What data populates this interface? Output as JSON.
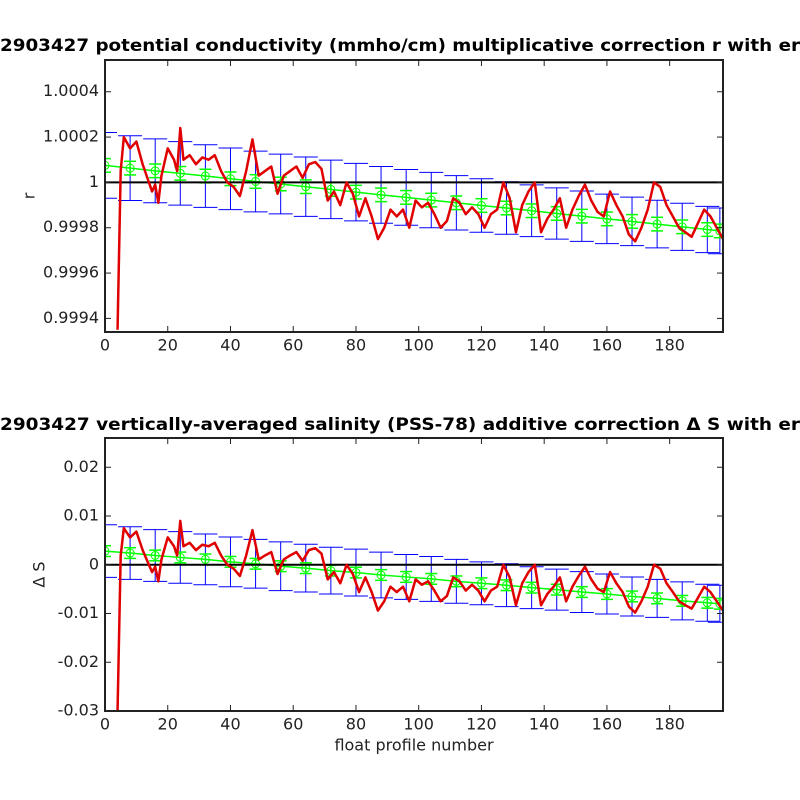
{
  "chart_data": [
    {
      "type": "errorbar_line",
      "title": "2903427 potential conductivity (mmho/cm) multiplicative correction r with er",
      "ylabel": "r",
      "xlim": [
        0,
        197
      ],
      "xticks": [
        0,
        20,
        40,
        60,
        80,
        100,
        120,
        140,
        160,
        180
      ],
      "ylim": [
        0.99934,
        1.00054
      ],
      "yticks": [
        0.9994,
        0.9996,
        0.9998,
        1,
        1.0002,
        1.0004
      ],
      "reference_y": 1,
      "reference_color": "#000000",
      "fit": {
        "x": [
          0,
          8,
          16,
          24,
          32,
          40,
          48,
          56,
          64,
          72,
          80,
          88,
          96,
          104,
          112,
          120,
          128,
          136,
          144,
          152,
          160,
          168,
          176,
          184,
          192,
          196
        ],
        "values": [
          1.000075,
          1.000063,
          1.000051,
          1.00004,
          1.000028,
          1.000016,
          1.000004,
          0.999993,
          0.999981,
          0.999969,
          0.999957,
          0.999945,
          0.999934,
          0.999922,
          0.99991,
          0.999898,
          0.999887,
          0.999875,
          0.999863,
          0.999851,
          0.999839,
          0.999828,
          0.999816,
          0.999804,
          0.999792,
          0.999786
        ],
        "error": [
          0.000145,
          0.000143,
          0.000141,
          0.00014,
          0.000138,
          0.000136,
          0.000134,
          0.000132,
          0.000131,
          0.000129,
          0.000127,
          0.000125,
          0.000123,
          0.000122,
          0.00012,
          0.000118,
          0.000116,
          0.000114,
          0.000113,
          0.000111,
          0.000109,
          0.000107,
          0.000105,
          0.000104,
          0.000102,
          0.000101
        ],
        "inner_error": [
          3e-05,
          3e-05,
          3e-05,
          3e-05,
          3e-05,
          3e-05,
          3e-05,
          3e-05,
          3e-05,
          3e-05,
          3e-05,
          3e-05,
          3e-05,
          3e-05,
          3e-05,
          3e-05,
          3e-05,
          3e-05,
          3e-05,
          3e-05,
          3e-05,
          3e-05,
          3e-05,
          3e-05,
          3e-05,
          3e-05
        ],
        "error_color": "#0000ff",
        "inner_color": "#00ff00"
      },
      "line": {
        "color": "#e00000",
        "x": [
          4,
          5,
          6,
          8,
          10,
          12,
          14,
          15,
          16,
          17,
          18,
          20,
          22,
          23,
          24,
          25,
          27,
          29,
          31,
          33,
          35,
          37,
          39,
          41,
          43,
          45,
          47,
          49,
          51,
          53,
          55,
          57,
          59,
          61,
          63,
          65,
          67,
          69,
          71,
          73,
          75,
          77,
          79,
          81,
          83,
          85,
          87,
          89,
          91,
          93,
          95,
          97,
          99,
          101,
          103,
          105,
          107,
          109,
          111,
          113,
          115,
          117,
          119,
          121,
          123,
          125,
          127,
          129,
          131,
          133,
          135,
          137,
          139,
          141,
          143,
          145,
          147,
          149,
          151,
          153,
          155,
          157,
          159,
          161,
          163,
          165,
          167,
          169,
          171,
          173,
          175,
          177,
          179,
          181,
          183,
          185,
          187,
          189,
          191,
          193,
          195,
          197
        ],
        "values": [
          0.99935,
          1.00005,
          1.0002,
          1.00015,
          1.00018,
          1.00008,
          1.0,
          0.99996,
          0.99999,
          0.99991,
          1.00003,
          1.00015,
          1.0001,
          1.00005,
          1.00024,
          1.0001,
          1.00012,
          1.00008,
          1.00011,
          1.0001,
          1.00012,
          1.00005,
          1.0,
          0.99998,
          0.99994,
          1.00005,
          1.00019,
          1.00003,
          1.00005,
          1.00007,
          0.99995,
          1.00003,
          1.00005,
          1.00007,
          1.00002,
          1.00008,
          1.00009,
          1.00006,
          0.99992,
          0.99996,
          0.9999,
          1.0,
          0.99995,
          0.99985,
          0.99993,
          0.99985,
          0.99975,
          0.9998,
          0.99988,
          0.99985,
          0.99988,
          0.9998,
          0.99992,
          0.99989,
          0.99991,
          0.99986,
          0.9998,
          0.99983,
          0.99993,
          0.99991,
          0.99986,
          0.99989,
          0.99986,
          0.9998,
          0.99986,
          0.99988,
          1.0,
          0.99993,
          0.99978,
          0.9999,
          0.99996,
          1.0,
          0.99978,
          0.99984,
          0.99988,
          0.99993,
          0.9998,
          0.99988,
          0.99994,
          0.99999,
          0.99992,
          0.99987,
          0.99985,
          0.99996,
          0.9999,
          0.99985,
          0.99977,
          0.99974,
          0.9998,
          0.99988,
          1.0,
          0.99998,
          0.9999,
          0.99985,
          0.9998,
          0.99978,
          0.99976,
          0.99982,
          0.99988,
          0.99985,
          0.9998,
          0.99975
        ]
      }
    },
    {
      "type": "errorbar_line",
      "title": "2903427 vertically-averaged salinity (PSS-78) additive correction Δ S with er",
      "ylabel": "Δ S",
      "xlabel": "float profile number",
      "xlim": [
        0,
        197
      ],
      "xticks": [
        0,
        20,
        40,
        60,
        80,
        100,
        120,
        140,
        160,
        180
      ],
      "ylim": [
        -0.03,
        0.026
      ],
      "yticks": [
        -0.03,
        -0.02,
        -0.01,
        0,
        0.01,
        0.02
      ],
      "reference_y": 0,
      "reference_color": "#000000",
      "fit": {
        "x": [
          0,
          8,
          16,
          24,
          32,
          40,
          48,
          56,
          64,
          72,
          80,
          88,
          96,
          104,
          112,
          120,
          128,
          136,
          144,
          152,
          160,
          168,
          176,
          184,
          192,
          196
        ],
        "values": [
          0.0028,
          0.0024,
          0.0019,
          0.0015,
          0.0011,
          0.0006,
          0.0002,
          -0.0003,
          -0.0007,
          -0.0012,
          -0.0016,
          -0.0021,
          -0.0025,
          -0.0029,
          -0.0034,
          -0.0038,
          -0.0042,
          -0.0047,
          -0.0051,
          -0.0056,
          -0.006,
          -0.0065,
          -0.0069,
          -0.0074,
          -0.0078,
          -0.008
        ],
        "error": [
          0.0054,
          0.0054,
          0.0053,
          0.0053,
          0.0052,
          0.0051,
          0.005,
          0.005,
          0.0049,
          0.0048,
          0.0048,
          0.0047,
          0.0046,
          0.0046,
          0.0045,
          0.0044,
          0.0044,
          0.0043,
          0.0042,
          0.0042,
          0.0041,
          0.004,
          0.0039,
          0.0039,
          0.0038,
          0.0038
        ],
        "inner_error": [
          0.0011,
          0.0011,
          0.0011,
          0.0011,
          0.0011,
          0.0011,
          0.0011,
          0.0011,
          0.0011,
          0.0011,
          0.0011,
          0.0011,
          0.0011,
          0.0011,
          0.0011,
          0.0011,
          0.0011,
          0.0011,
          0.0011,
          0.0011,
          0.0011,
          0.0011,
          0.0011,
          0.0011,
          0.0011,
          0.0011
        ],
        "error_color": "#0000ff",
        "inner_color": "#00ff00"
      },
      "line": {
        "color": "#e00000",
        "x": [
          4,
          5,
          6,
          8,
          10,
          12,
          14,
          15,
          16,
          17,
          18,
          20,
          22,
          23,
          24,
          25,
          27,
          29,
          31,
          33,
          35,
          37,
          39,
          41,
          43,
          45,
          47,
          49,
          51,
          53,
          55,
          57,
          59,
          61,
          63,
          65,
          67,
          69,
          71,
          73,
          75,
          77,
          79,
          81,
          83,
          85,
          87,
          89,
          91,
          93,
          95,
          97,
          99,
          101,
          103,
          105,
          107,
          109,
          111,
          113,
          115,
          117,
          119,
          121,
          123,
          125,
          127,
          129,
          131,
          133,
          135,
          137,
          139,
          141,
          143,
          145,
          147,
          149,
          151,
          153,
          155,
          157,
          159,
          161,
          163,
          165,
          167,
          169,
          171,
          173,
          175,
          177,
          179,
          181,
          183,
          185,
          187,
          189,
          191,
          193,
          195,
          197
        ],
        "values": [
          -0.03,
          0.0019,
          0.0075,
          0.0056,
          0.0068,
          0.003,
          0,
          -0.0015,
          -0.0004,
          -0.0034,
          0.0011,
          0.0056,
          0.0038,
          0.0019,
          0.009,
          0.0038,
          0.0045,
          0.003,
          0.0041,
          0.0038,
          0.0045,
          0.0019,
          0,
          -0.0008,
          -0.0023,
          0.0019,
          0.0071,
          0.0011,
          0.0019,
          0.0026,
          -0.0019,
          0.0011,
          0.0019,
          0.0026,
          0.0008,
          0.003,
          0.0034,
          0.0023,
          -0.003,
          -0.0015,
          -0.0038,
          0,
          -0.0019,
          -0.0056,
          -0.0026,
          -0.0056,
          -0.0094,
          -0.0075,
          -0.0045,
          -0.0056,
          -0.0045,
          -0.0075,
          -0.003,
          -0.0041,
          -0.0034,
          -0.0053,
          -0.0075,
          -0.0064,
          -0.0026,
          -0.0034,
          -0.0053,
          -0.0041,
          -0.0053,
          -0.0075,
          -0.0053,
          -0.0045,
          0,
          -0.0026,
          -0.0083,
          -0.0038,
          -0.0015,
          0,
          -0.0083,
          -0.006,
          -0.0045,
          -0.0026,
          -0.0075,
          -0.0045,
          -0.0023,
          -0.0004,
          -0.003,
          -0.0049,
          -0.0056,
          -0.0015,
          -0.0038,
          -0.0056,
          -0.0086,
          -0.0098,
          -0.0075,
          -0.0045,
          0,
          -0.0008,
          -0.0038,
          -0.0056,
          -0.0075,
          -0.0083,
          -0.009,
          -0.0068,
          -0.0045,
          -0.0056,
          -0.0075,
          -0.0094
        ]
      }
    }
  ]
}
